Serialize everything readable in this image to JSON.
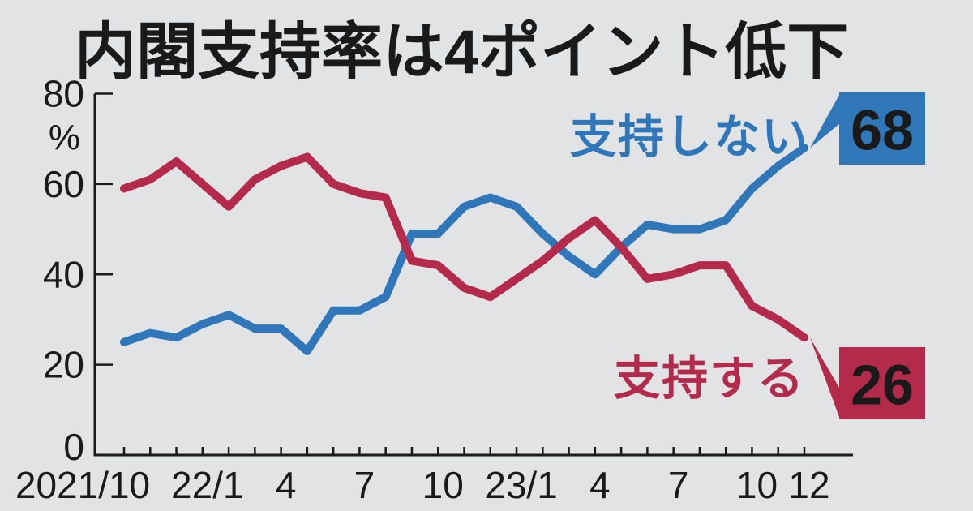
{
  "page": {
    "title": "内閣支持率は4ポイント低下"
  },
  "legend": {
    "disapprove": "支持しない",
    "approve": "支持する"
  },
  "badges": {
    "disapprove": "68",
    "approve": "26"
  },
  "colors": {
    "background": "#e2e3e5",
    "text": "#1a1a1a",
    "axis": "#1a1a1a",
    "disapprove": "#2f77b8",
    "approve": "#b32a4a",
    "badge_text": "#ffffff"
  },
  "chart_data": {
    "type": "line",
    "title": "内閣支持率は4ポイント低下",
    "xlabel": "",
    "ylabel": "%",
    "ylim": [
      0,
      80
    ],
    "yticks": [
      0,
      20,
      40,
      60,
      80
    ],
    "grid": false,
    "legend_position": "inline-right",
    "categories": [
      "2021/10",
      "2021/11",
      "2021/12",
      "2022/1",
      "2022/2",
      "2022/3",
      "2022/4",
      "2022/5",
      "2022/6",
      "2022/7",
      "2022/8",
      "2022/9",
      "2022/10",
      "2022/11",
      "2022/12",
      "2023/1",
      "2023/2",
      "2023/3",
      "2023/4",
      "2023/5",
      "2023/6",
      "2023/7",
      "2023/8",
      "2023/9",
      "2023/10",
      "2023/11",
      "2023/12"
    ],
    "x_tick_labels": [
      {
        "index": 0,
        "label": "2021/10"
      },
      {
        "index": 3,
        "label": "22/1"
      },
      {
        "index": 6,
        "label": "4"
      },
      {
        "index": 9,
        "label": "7"
      },
      {
        "index": 12,
        "label": "10"
      },
      {
        "index": 15,
        "label": "23/1"
      },
      {
        "index": 18,
        "label": "4"
      },
      {
        "index": 21,
        "label": "7"
      },
      {
        "index": 24,
        "label": "10"
      },
      {
        "index": 26,
        "label": "12"
      }
    ],
    "series": [
      {
        "name": "支持しない",
        "role": "disapprove",
        "color": "#2f77b8",
        "end_value_label": "68",
        "values": [
          25,
          27,
          26,
          29,
          31,
          28,
          28,
          23,
          32,
          32,
          35,
          49,
          49,
          55,
          57,
          55,
          49,
          44,
          40,
          46,
          51,
          50,
          50,
          52,
          59,
          64,
          68
        ]
      },
      {
        "name": "支持する",
        "role": "approve",
        "color": "#b32a4a",
        "end_value_label": "26",
        "values": [
          59,
          61,
          65,
          60,
          55,
          61,
          64,
          66,
          60,
          58,
          57,
          43,
          42,
          37,
          35,
          39,
          43,
          48,
          52,
          46,
          39,
          40,
          42,
          42,
          33,
          30,
          26
        ]
      }
    ]
  }
}
